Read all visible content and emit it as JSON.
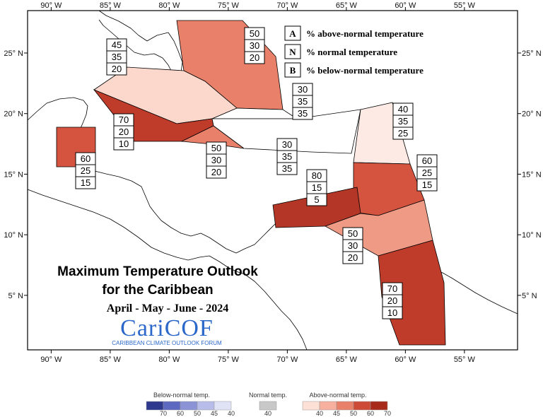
{
  "map": {
    "title_line1": "Maximum Temperature Outlook",
    "title_line2": "for the Caribbean",
    "period": "April - May - June - 2024",
    "logo": {
      "name": "CariCOF",
      "tagline": "CARIBBEAN CLIMATE OUTLOOK FORUM"
    },
    "extent": {
      "lon_min": -92,
      "lon_max": -50.5,
      "lat_min": 0.5,
      "lat_max": 28.5
    },
    "x_ticks": [
      {
        "lon": -90,
        "label": "90° W"
      },
      {
        "lon": -85,
        "label": "85° W"
      },
      {
        "lon": -80,
        "label": "80° W"
      },
      {
        "lon": -75,
        "label": "75° W"
      },
      {
        "lon": -70,
        "label": "70° W"
      },
      {
        "lon": -65,
        "label": "65° W"
      },
      {
        "lon": -60,
        "label": "60° W"
      },
      {
        "lon": -55,
        "label": "55° W"
      }
    ],
    "y_ticks": [
      {
        "lat": 25,
        "label": "25° N"
      },
      {
        "lat": 20,
        "label": "20° N"
      },
      {
        "lat": 15,
        "label": "15° N"
      },
      {
        "lat": 10,
        "label": "10° N"
      },
      {
        "lat": 5,
        "label": "5° N"
      }
    ],
    "key": [
      {
        "letter": "A",
        "text": "% above-normal temperature"
      },
      {
        "letter": "N",
        "text": "% normal temperature"
      },
      {
        "letter": "B",
        "text": "% below-normal temperature"
      }
    ],
    "regions": [
      {
        "id": "bahamas",
        "above": "50",
        "normal": "30",
        "below": "20",
        "color": "#e8806a"
      },
      {
        "id": "cuba",
        "above": "45",
        "normal": "35",
        "below": "20",
        "color": "#fbd7cc"
      },
      {
        "id": "cayman-jamaica",
        "above": "70",
        "normal": "20",
        "below": "10",
        "color": "#bf3b2a"
      },
      {
        "id": "jamaica-south",
        "above": "50",
        "normal": "30",
        "below": "20",
        "color": "#e8806a"
      },
      {
        "id": "belize",
        "above": "60",
        "normal": "25",
        "below": "15",
        "color": "#d4543f"
      },
      {
        "id": "turks-caicos",
        "above": "30",
        "normal": "35",
        "below": "35",
        "color": "#ffffff"
      },
      {
        "id": "hispaniola-puerto-rico",
        "above": "30",
        "normal": "35",
        "below": "35",
        "color": "#ffffff"
      },
      {
        "id": "northern-leewards",
        "above": "40",
        "normal": "35",
        "below": "25",
        "color": "#fdeae4"
      },
      {
        "id": "eastern-caribbean",
        "above": "60",
        "normal": "25",
        "below": "15",
        "color": "#d4543f"
      },
      {
        "id": "abc-islands",
        "above": "80",
        "normal": "15",
        "below": "5",
        "color": "#b33626"
      },
      {
        "id": "trinidad-tobago",
        "above": "50",
        "normal": "30",
        "below": "20",
        "color": "#ee9a85"
      },
      {
        "id": "guianas",
        "above": "70",
        "normal": "20",
        "below": "10",
        "color": "#bf3b2a"
      }
    ],
    "legend": {
      "below": {
        "title": "Below-normal temp.",
        "ticks": [
          "70",
          "60",
          "50",
          "45",
          "40"
        ],
        "colors": [
          "#2f3a8f",
          "#5d68c0",
          "#8b93d6",
          "#b7bde8",
          "#e0e3f6"
        ]
      },
      "normal": {
        "title": "Normal temp.",
        "ticks": [
          "40"
        ],
        "colors": [
          "#c8c8c8"
        ]
      },
      "above": {
        "title": "Above-normal temp.",
        "ticks": [
          "40",
          "45",
          "50",
          "60",
          "70"
        ],
        "colors": [
          "#fde0d6",
          "#f6b09d",
          "#e8806a",
          "#cc4a36",
          "#a82a1b"
        ]
      }
    }
  }
}
